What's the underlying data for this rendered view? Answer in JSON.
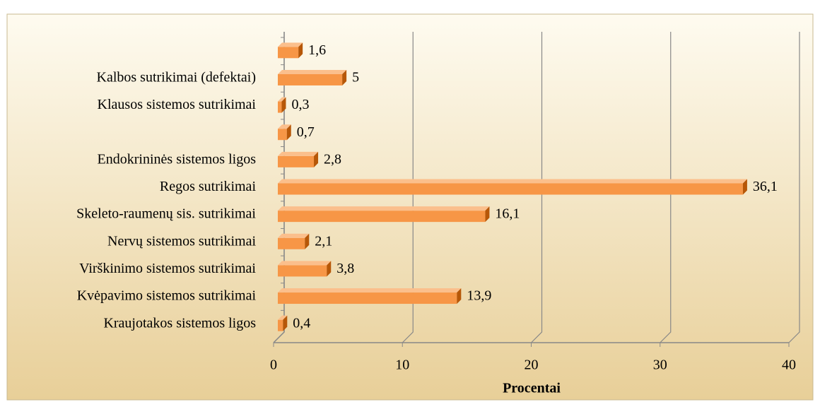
{
  "chart_data": {
    "type": "hbar",
    "categories": [
      null,
      "Kalbos sutrikimai (defektai)",
      "Klausos sistemos sutrikimai",
      null,
      "Endokrininės sistemos ligos",
      "Regos sutrikimai",
      "Skeleto-raumenų sis. sutrikimai",
      "Nervų sistemos sutrikimai",
      "Virškinimo sistemos sutrikimai",
      "Kvėpavimo sistemos sutrikimai",
      "Kraujotakos sistemos ligos"
    ],
    "values": [
      1.6,
      5,
      0.3,
      0.7,
      2.8,
      36.1,
      16.1,
      2.1,
      3.8,
      13.9,
      0.4
    ],
    "value_labels": [
      "1,6",
      "5",
      "0,3",
      "0,7",
      "2,8",
      "36,1",
      "16,1",
      "2,1",
      "3,8",
      "13,9",
      "0,4"
    ],
    "color": "#f79646",
    "xlabel": "Procentai",
    "xlim": [
      0,
      40
    ],
    "xticks": [
      0,
      10,
      20,
      30,
      40
    ],
    "grid": true
  }
}
